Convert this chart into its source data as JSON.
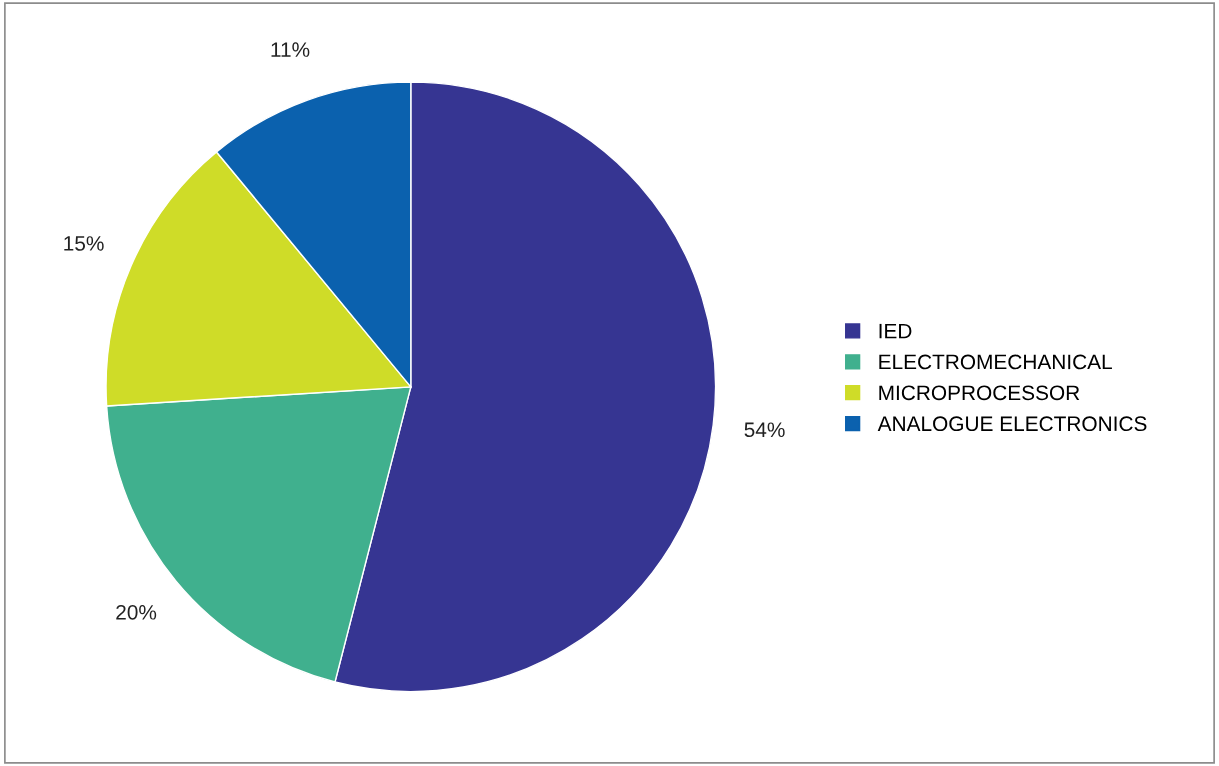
{
  "chart_data": {
    "type": "pie",
    "categories": [
      "IED",
      "ELECTROMECHANICAL",
      "MICROPROCESSOR",
      "ANALOGUE ELECTRONICS"
    ],
    "values": [
      54,
      20,
      15,
      11
    ],
    "colors": [
      "#363592",
      "#40b08e",
      "#cfdc28",
      "#0b61ae"
    ],
    "value_labels": [
      "54%",
      "20%",
      "15%",
      "11%"
    ],
    "legend": "right"
  }
}
